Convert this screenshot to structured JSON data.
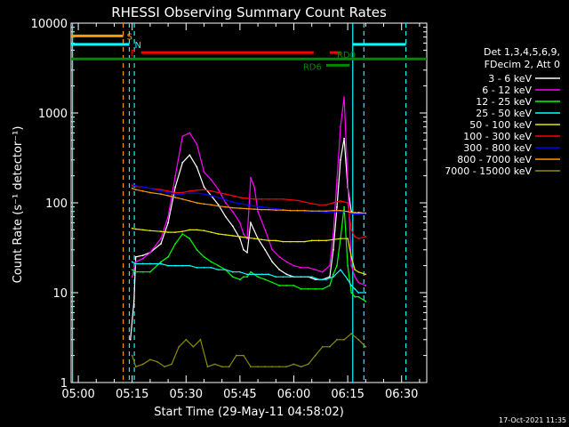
{
  "chart_data": {
    "type": "line",
    "title": "RHESSI Observing Summary Count Rates",
    "xlabel": "Start Time (29-May-11 04:58:02)",
    "ylabel": "Count Rate (s⁻¹ detector⁻¹)",
    "y_scale": "log",
    "ylim": [
      1,
      10000
    ],
    "xlim_minutes": [
      -2,
      97
    ],
    "x_ticks": [
      {
        "label": "05:00",
        "min": 0
      },
      {
        "label": "05:15",
        "min": 15
      },
      {
        "label": "05:30",
        "min": 30
      },
      {
        "label": "05:45",
        "min": 45
      },
      {
        "label": "06:00",
        "min": 60
      },
      {
        "label": "06:15",
        "min": 75
      },
      {
        "label": "06:30",
        "min": 90
      }
    ],
    "y_ticks": [
      {
        "label": "1",
        "value": 1
      },
      {
        "label": "10",
        "value": 10
      },
      {
        "label": "100",
        "value": 100
      },
      {
        "label": "1000",
        "value": 1000
      },
      {
        "label": "10000",
        "value": 10000
      }
    ],
    "legend_header": [
      "Det 1,3,4,5,6,9,",
      "FDecim 2, Att 0"
    ],
    "legend_placement": "right",
    "series": [
      {
        "name": "3 - 6 keV",
        "color": "#ffffff",
        "x": [
          14.5,
          15.5,
          16,
          18,
          20,
          23,
          25,
          27,
          29,
          31,
          33,
          35,
          37,
          39,
          41,
          43,
          45,
          46,
          47,
          48,
          50,
          52,
          54,
          56,
          58,
          60,
          62,
          64,
          66,
          68,
          70,
          71,
          72,
          73,
          74,
          75,
          76,
          77,
          78,
          80
        ],
        "y": [
          3,
          8,
          25,
          26,
          28,
          35,
          60,
          150,
          280,
          340,
          250,
          150,
          120,
          95,
          70,
          55,
          40,
          30,
          28,
          60,
          40,
          30,
          22,
          18,
          16,
          15,
          15,
          15,
          14,
          14,
          15,
          30,
          90,
          300,
          520,
          150,
          80,
          75,
          78,
          76
        ]
      },
      {
        "name": "6 - 12 keV",
        "color": "#ff00ff",
        "x": [
          15,
          16,
          18,
          20,
          23,
          25,
          27,
          29,
          31,
          33,
          35,
          37,
          39,
          41,
          43,
          45,
          46,
          47,
          48,
          49,
          50,
          52,
          54,
          56,
          58,
          60,
          62,
          64,
          66,
          68,
          70,
          71,
          72,
          73,
          74,
          75,
          76,
          77,
          78,
          80
        ],
        "y": [
          15,
          22,
          24,
          28,
          40,
          70,
          200,
          550,
          600,
          450,
          220,
          180,
          140,
          100,
          80,
          60,
          45,
          40,
          190,
          150,
          80,
          50,
          30,
          25,
          22,
          20,
          19,
          19,
          18,
          17,
          20,
          45,
          180,
          700,
          1500,
          180,
          20,
          15,
          13,
          12
        ]
      },
      {
        "name": "12 - 25 keV",
        "color": "#00ff00",
        "x": [
          15,
          16,
          18,
          20,
          23,
          25,
          27,
          29,
          31,
          33,
          35,
          37,
          39,
          41,
          43,
          45,
          46,
          47,
          48,
          50,
          52,
          54,
          56,
          58,
          60,
          62,
          64,
          66,
          68,
          70,
          71,
          72,
          73,
          74,
          75,
          76,
          77,
          78,
          80
        ],
        "y": [
          18,
          17,
          17,
          17,
          22,
          25,
          35,
          45,
          40,
          30,
          25,
          22,
          20,
          18,
          15,
          14,
          15,
          15,
          17,
          15,
          14,
          13,
          12,
          12,
          12,
          11,
          11,
          11,
          11,
          12,
          16,
          20,
          40,
          90,
          20,
          10,
          9,
          9,
          8
        ]
      },
      {
        "name": "25 - 50 keV",
        "color": "#00ffff",
        "x": [
          15,
          16,
          18,
          20,
          23,
          25,
          27,
          29,
          31,
          33,
          35,
          37,
          39,
          41,
          43,
          45,
          47,
          49,
          51,
          53,
          55,
          57,
          59,
          61,
          63,
          65,
          67,
          69,
          71,
          73,
          75,
          76,
          77,
          78,
          80
        ],
        "y": [
          22,
          21,
          21,
          21,
          21,
          20,
          20,
          20,
          20,
          19,
          19,
          19,
          18,
          18,
          17,
          17,
          16,
          16,
          16,
          16,
          15,
          15,
          15,
          15,
          15,
          15,
          14,
          14,
          15,
          18,
          14,
          12,
          11,
          10,
          10
        ]
      },
      {
        "name": "50 - 100 keV",
        "color": "#e6e600",
        "x": [
          15,
          16,
          18,
          20,
          23,
          25,
          27,
          29,
          31,
          33,
          35,
          37,
          39,
          41,
          43,
          45,
          47,
          49,
          51,
          53,
          55,
          57,
          59,
          61,
          63,
          65,
          67,
          69,
          71,
          73,
          75,
          76,
          77,
          78,
          80
        ],
        "y": [
          52,
          51,
          50,
          49,
          48,
          47,
          47,
          48,
          50,
          50,
          49,
          47,
          45,
          44,
          43,
          42,
          41,
          40,
          39,
          38,
          38,
          37,
          37,
          37,
          37,
          38,
          38,
          38,
          39,
          40,
          40,
          25,
          18,
          17,
          16
        ]
      },
      {
        "name": "100 - 300 keV",
        "color": "#ff0000",
        "x": [
          15,
          16,
          18,
          20,
          23,
          25,
          27,
          29,
          31,
          33,
          35,
          37,
          39,
          41,
          43,
          45,
          47,
          49,
          51,
          53,
          55,
          57,
          59,
          61,
          63,
          65,
          67,
          69,
          71,
          73,
          75,
          76,
          77,
          78,
          80
        ],
        "y": [
          155,
          152,
          150,
          145,
          140,
          135,
          130,
          130,
          135,
          138,
          140,
          135,
          130,
          125,
          120,
          115,
          112,
          110,
          110,
          110,
          110,
          110,
          108,
          106,
          102,
          98,
          95,
          95,
          100,
          105,
          100,
          50,
          42,
          40,
          42
        ]
      },
      {
        "name": "300 - 800 keV",
        "color": "#0000ff",
        "x": [
          15,
          16,
          18,
          20,
          23,
          25,
          27,
          29,
          31,
          33,
          35,
          37,
          39,
          41,
          43,
          45,
          47,
          49,
          51,
          53,
          55,
          57,
          59,
          61,
          63,
          65,
          67,
          69,
          71,
          73,
          75,
          76,
          77,
          78,
          80
        ],
        "y": [
          160,
          155,
          150,
          145,
          135,
          130,
          125,
          125,
          128,
          128,
          125,
          120,
          115,
          108,
          102,
          98,
          95,
          92,
          90,
          88,
          86,
          84,
          82,
          81,
          80,
          80,
          80,
          79,
          79,
          80,
          80,
          76,
          75,
          75,
          76
        ]
      },
      {
        "name": "800 - 7000 keV",
        "color": "#ff9900",
        "x": [
          15,
          16,
          18,
          20,
          23,
          25,
          27,
          29,
          31,
          33,
          35,
          37,
          39,
          41,
          43,
          45,
          47,
          49,
          51,
          53,
          55,
          57,
          59,
          61,
          63,
          65,
          67,
          69,
          71,
          73,
          75,
          76,
          77,
          78,
          80
        ],
        "y": [
          145,
          140,
          135,
          130,
          125,
          120,
          115,
          110,
          105,
          100,
          97,
          95,
          92,
          90,
          88,
          87,
          86,
          85,
          84,
          84,
          83,
          83,
          82,
          82,
          82,
          81,
          81,
          81,
          82,
          82,
          80,
          78,
          78,
          77,
          77
        ]
      },
      {
        "name": "7000 - 15000 keV",
        "color": "#8c8c00",
        "x": [
          15,
          16,
          18,
          20,
          22,
          24,
          26,
          28,
          30,
          32,
          34,
          36,
          38,
          40,
          42,
          44,
          46,
          48,
          50,
          52,
          54,
          56,
          58,
          60,
          62,
          64,
          66,
          68,
          70,
          72,
          74,
          76,
          78,
          80
        ],
        "y": [
          2,
          1.5,
          1.6,
          1.8,
          1.7,
          1.5,
          1.6,
          2.5,
          3,
          2.5,
          3,
          1.5,
          1.6,
          1.5,
          1.5,
          2,
          2,
          1.5,
          1.5,
          1.5,
          1.5,
          1.5,
          1.5,
          1.6,
          1.5,
          1.6,
          2,
          2.5,
          2.5,
          3,
          3,
          3.5,
          3,
          2.5
        ]
      }
    ],
    "vertical_lines": [
      {
        "x": 12.5,
        "color": "#ff9900"
      },
      {
        "x": 14.2,
        "color": "#00ffff"
      },
      {
        "x": 15.6,
        "color": "#00ffff"
      },
      {
        "x": 76.4,
        "color": "#00ffff",
        "solid": true
      },
      {
        "x": 79.5,
        "color": "#00ffff"
      },
      {
        "x": 91.2,
        "color": "#00ffff"
      },
      {
        "x": -1.6,
        "color": "#00ffff",
        "solid": true
      }
    ],
    "flag_bars": [
      {
        "label": "S",
        "color": "#ff9900",
        "segments": [
          [
            -2,
            12.5
          ]
        ],
        "y": 7200
      },
      {
        "label": "N",
        "color": "#00ffff",
        "segments": [
          [
            -2,
            14.2
          ],
          [
            76.4,
            91.2
          ]
        ],
        "y": 5800
      },
      {
        "label": "F",
        "color": "#ff0000",
        "segments": [
          [
            17.5,
            65.5
          ],
          [
            70,
            73
          ]
        ],
        "y": 4700
      },
      {
        "label": "RD0",
        "color": "#008800",
        "segments": [
          [
            -2,
            97
          ]
        ],
        "y": 4000
      },
      {
        "label": "RD6",
        "color": "#008800",
        "segments": [
          [
            69,
            75.5
          ]
        ],
        "y": 3400
      }
    ]
  },
  "footer": {
    "timestamp": "17-Oct-2021 11:35"
  }
}
